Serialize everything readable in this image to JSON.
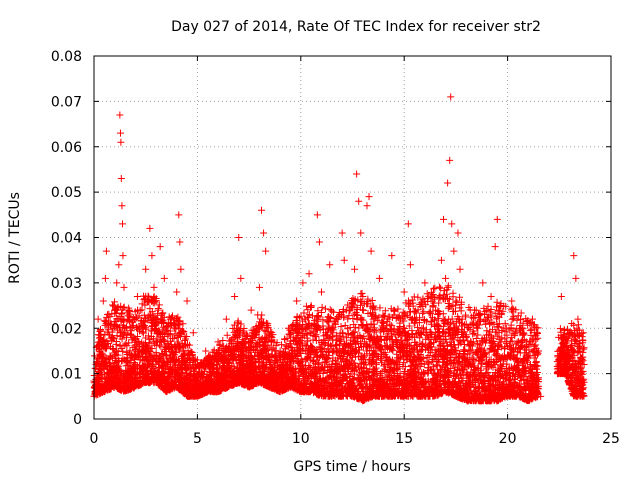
{
  "chart_data": {
    "type": "scatter",
    "title": "Day 027 of 2014, Rate Of TEC Index for receiver str2",
    "xlabel": "GPS time / hours",
    "ylabel": "ROTI / TECUs",
    "xlim": [
      0,
      25
    ],
    "ylim": [
      0,
      0.08
    ],
    "xticks": [
      0,
      5,
      10,
      15,
      20,
      25
    ],
    "yticks": [
      0,
      0.01,
      0.02,
      0.03,
      0.04,
      0.05,
      0.06,
      0.07,
      0.08
    ],
    "xtick_labels": [
      "0",
      "5",
      "10",
      "15",
      "20",
      "25"
    ],
    "ytick_labels": [
      "0",
      "0.01",
      "0.02",
      "0.03",
      "0.04",
      "0.05",
      "0.06",
      "0.07",
      "0.08"
    ],
    "grid": true,
    "marker": "+",
    "series": [
      {
        "name": "ROTI",
        "color": "#ff0000",
        "points": [
          [
            0.1,
            0.012
          ],
          [
            0.15,
            0.016
          ],
          [
            0.2,
            0.022
          ],
          [
            0.25,
            0.009
          ],
          [
            0.3,
            0.018
          ],
          [
            0.4,
            0.006
          ],
          [
            0.45,
            0.026
          ],
          [
            0.5,
            0.013
          ],
          [
            0.55,
            0.031
          ],
          [
            0.6,
            0.037
          ],
          [
            0.65,
            0.008
          ],
          [
            0.7,
            0.021
          ],
          [
            0.8,
            0.016
          ],
          [
            0.9,
            0.011
          ],
          [
            1.0,
            0.024
          ],
          [
            1.1,
            0.03
          ],
          [
            1.2,
            0.034
          ],
          [
            1.25,
            0.067
          ],
          [
            1.28,
            0.063
          ],
          [
            1.3,
            0.061
          ],
          [
            1.32,
            0.053
          ],
          [
            1.35,
            0.047
          ],
          [
            1.38,
            0.043
          ],
          [
            1.4,
            0.036
          ],
          [
            1.45,
            0.029
          ],
          [
            1.5,
            0.019
          ],
          [
            1.6,
            0.013
          ],
          [
            1.7,
            0.024
          ],
          [
            1.8,
            0.009
          ],
          [
            1.9,
            0.018
          ],
          [
            2.0,
            0.012
          ],
          [
            2.1,
            0.027
          ],
          [
            2.2,
            0.016
          ],
          [
            2.3,
            0.021
          ],
          [
            2.4,
            0.01
          ],
          [
            2.5,
            0.033
          ],
          [
            2.6,
            0.026
          ],
          [
            2.7,
            0.042
          ],
          [
            2.8,
            0.036
          ],
          [
            2.9,
            0.029
          ],
          [
            3.0,
            0.017
          ],
          [
            3.1,
            0.024
          ],
          [
            3.2,
            0.038
          ],
          [
            3.3,
            0.019
          ],
          [
            3.4,
            0.031
          ],
          [
            3.5,
            0.014
          ],
          [
            3.6,
            0.01
          ],
          [
            3.7,
            0.022
          ],
          [
            3.8,
            0.007
          ],
          [
            3.9,
            0.016
          ],
          [
            4.0,
            0.028
          ],
          [
            4.1,
            0.045
          ],
          [
            4.15,
            0.039
          ],
          [
            4.2,
            0.033
          ],
          [
            4.3,
            0.021
          ],
          [
            4.4,
            0.014
          ],
          [
            4.5,
            0.026
          ],
          [
            4.6,
            0.009
          ],
          [
            4.7,
            0.011
          ],
          [
            4.8,
            0.019
          ],
          [
            4.9,
            0.006
          ],
          [
            5.0,
            0.013
          ],
          [
            5.2,
            0.01
          ],
          [
            5.4,
            0.015
          ],
          [
            5.6,
            0.008
          ],
          [
            5.8,
            0.012
          ],
          [
            6.0,
            0.017
          ],
          [
            6.2,
            0.009
          ],
          [
            6.4,
            0.022
          ],
          [
            6.6,
            0.014
          ],
          [
            6.8,
            0.027
          ],
          [
            7.0,
            0.04
          ],
          [
            7.1,
            0.031
          ],
          [
            7.2,
            0.019
          ],
          [
            7.4,
            0.012
          ],
          [
            7.6,
            0.024
          ],
          [
            7.8,
            0.016
          ],
          [
            8.0,
            0.029
          ],
          [
            8.1,
            0.046
          ],
          [
            8.2,
            0.041
          ],
          [
            8.3,
            0.037
          ],
          [
            8.4,
            0.021
          ],
          [
            8.5,
            0.013
          ],
          [
            8.6,
            0.018
          ],
          [
            8.8,
            0.009
          ],
          [
            9.0,
            0.015
          ],
          [
            9.2,
            0.011
          ],
          [
            9.4,
            0.02
          ],
          [
            9.6,
            0.014
          ],
          [
            9.8,
            0.026
          ],
          [
            10.0,
            0.018
          ],
          [
            10.1,
            0.03
          ],
          [
            10.2,
            0.022
          ],
          [
            10.4,
            0.032
          ],
          [
            10.5,
            0.025
          ],
          [
            10.6,
            0.013
          ],
          [
            10.8,
            0.045
          ],
          [
            10.9,
            0.039
          ],
          [
            11.0,
            0.028
          ],
          [
            11.2,
            0.019
          ],
          [
            11.4,
            0.034
          ],
          [
            11.5,
            0.016
          ],
          [
            11.6,
            0.011
          ],
          [
            11.8,
            0.022
          ],
          [
            12.0,
            0.041
          ],
          [
            12.1,
            0.035
          ],
          [
            12.2,
            0.024
          ],
          [
            12.4,
            0.014
          ],
          [
            12.6,
            0.033
          ],
          [
            12.7,
            0.054
          ],
          [
            12.8,
            0.048
          ],
          [
            12.9,
            0.041
          ],
          [
            13.0,
            0.027
          ],
          [
            13.2,
            0.047
          ],
          [
            13.3,
            0.049
          ],
          [
            13.4,
            0.037
          ],
          [
            13.5,
            0.022
          ],
          [
            13.6,
            0.015
          ],
          [
            13.8,
            0.031
          ],
          [
            14.0,
            0.02
          ],
          [
            14.2,
            0.012
          ],
          [
            14.4,
            0.036
          ],
          [
            14.5,
            0.024
          ],
          [
            14.6,
            0.017
          ],
          [
            14.8,
            0.01
          ],
          [
            15.0,
            0.028
          ],
          [
            15.2,
            0.043
          ],
          [
            15.3,
            0.034
          ],
          [
            15.4,
            0.022
          ],
          [
            15.6,
            0.013
          ],
          [
            15.8,
            0.019
          ],
          [
            16.0,
            0.03
          ],
          [
            16.2,
            0.014
          ],
          [
            16.4,
            0.025
          ],
          [
            16.6,
            0.018
          ],
          [
            16.8,
            0.035
          ],
          [
            16.9,
            0.044
          ],
          [
            17.0,
            0.031
          ],
          [
            17.1,
            0.052
          ],
          [
            17.2,
            0.057
          ],
          [
            17.25,
            0.071
          ],
          [
            17.3,
            0.043
          ],
          [
            17.4,
            0.037
          ],
          [
            17.5,
            0.026
          ],
          [
            17.6,
            0.041
          ],
          [
            17.7,
            0.033
          ],
          [
            17.8,
            0.022
          ],
          [
            17.9,
            0.011
          ],
          [
            18.0,
            0.018
          ],
          [
            18.2,
            0.008
          ],
          [
            18.4,
            0.024
          ],
          [
            18.6,
            0.015
          ],
          [
            18.8,
            0.03
          ],
          [
            19.0,
            0.012
          ],
          [
            19.2,
            0.027
          ],
          [
            19.4,
            0.038
          ],
          [
            19.5,
            0.044
          ],
          [
            19.6,
            0.021
          ],
          [
            19.8,
            0.009
          ],
          [
            20.0,
            0.016
          ],
          [
            20.2,
            0.026
          ],
          [
            20.4,
            0.013
          ],
          [
            20.6,
            0.019
          ],
          [
            20.8,
            0.007
          ],
          [
            21.0,
            0.014
          ],
          [
            21.2,
            0.022
          ],
          [
            21.4,
            0.011
          ],
          [
            21.6,
            0.005
          ],
          [
            22.6,
            0.027
          ],
          [
            22.7,
            0.018
          ],
          [
            23.2,
            0.036
          ],
          [
            23.3,
            0.031
          ],
          [
            23.4,
            0.022
          ],
          [
            23.5,
            0.015
          ],
          [
            23.6,
            0.008
          ],
          [
            23.7,
            0.012
          ]
        ],
        "band": [
          [
            0.0,
            0.005,
            0.016
          ],
          [
            0.5,
            0.006,
            0.022
          ],
          [
            1.0,
            0.007,
            0.026
          ],
          [
            1.5,
            0.006,
            0.025
          ],
          [
            2.0,
            0.007,
            0.024
          ],
          [
            2.5,
            0.008,
            0.028
          ],
          [
            3.0,
            0.008,
            0.027
          ],
          [
            3.5,
            0.006,
            0.022
          ],
          [
            4.0,
            0.007,
            0.024
          ],
          [
            4.5,
            0.005,
            0.018
          ],
          [
            5.0,
            0.005,
            0.012
          ],
          [
            5.5,
            0.006,
            0.014
          ],
          [
            6.0,
            0.006,
            0.016
          ],
          [
            6.5,
            0.007,
            0.019
          ],
          [
            7.0,
            0.008,
            0.022
          ],
          [
            7.5,
            0.007,
            0.018
          ],
          [
            8.0,
            0.008,
            0.024
          ],
          [
            8.5,
            0.007,
            0.02
          ],
          [
            9.0,
            0.006,
            0.016
          ],
          [
            9.5,
            0.007,
            0.02
          ],
          [
            10.0,
            0.006,
            0.024
          ],
          [
            10.5,
            0.006,
            0.026
          ],
          [
            11.0,
            0.005,
            0.025
          ],
          [
            11.5,
            0.005,
            0.024
          ],
          [
            12.0,
            0.005,
            0.025
          ],
          [
            12.5,
            0.005,
            0.027
          ],
          [
            13.0,
            0.004,
            0.028
          ],
          [
            13.5,
            0.005,
            0.026
          ],
          [
            14.0,
            0.005,
            0.024
          ],
          [
            14.5,
            0.005,
            0.025
          ],
          [
            15.0,
            0.005,
            0.026
          ],
          [
            15.5,
            0.005,
            0.027
          ],
          [
            16.0,
            0.005,
            0.028
          ],
          [
            16.5,
            0.005,
            0.029
          ],
          [
            17.0,
            0.006,
            0.03
          ],
          [
            17.5,
            0.005,
            0.028
          ],
          [
            18.0,
            0.004,
            0.025
          ],
          [
            18.5,
            0.004,
            0.024
          ],
          [
            19.0,
            0.004,
            0.025
          ],
          [
            19.5,
            0.004,
            0.026
          ],
          [
            20.0,
            0.005,
            0.025
          ],
          [
            20.5,
            0.005,
            0.024
          ],
          [
            21.0,
            0.004,
            0.022
          ],
          [
            21.5,
            0.005,
            0.02
          ],
          [
            22.4,
            0.01,
            0.02
          ],
          [
            22.8,
            0.01,
            0.02
          ],
          [
            23.2,
            0.005,
            0.022
          ],
          [
            23.7,
            0.005,
            0.02
          ]
        ]
      }
    ]
  }
}
